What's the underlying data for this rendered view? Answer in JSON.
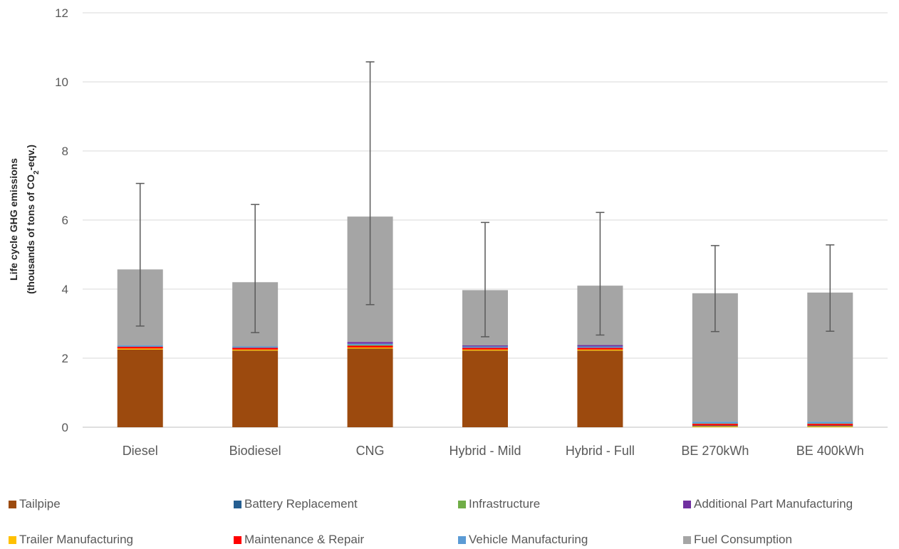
{
  "chart_data": {
    "type": "bar",
    "stacked": true,
    "categories": [
      "Diesel",
      "Biodiesel",
      "CNG",
      "Hybrid - Mild",
      "Hybrid - Full",
      "BE 270kWh",
      "BE 400kWh"
    ],
    "ylabel_line1": "Life cycle GHG emissions",
    "ylabel_line2_pre": "(thousands of tons of CO",
    "ylabel_line2_sub": "2",
    "ylabel_line2_post": "-eqv.)",
    "ylim": [
      0,
      12
    ],
    "yticks": [
      0,
      2,
      4,
      6,
      8,
      10,
      12
    ],
    "grid": true,
    "legend_position": "bottom",
    "series": [
      {
        "name": "Tailpipe",
        "color": "#9C4A0E",
        "values": [
          2.25,
          2.22,
          2.28,
          2.22,
          2.22,
          0.0,
          0.0
        ]
      },
      {
        "name": "Trailer Manufacturing",
        "color": "#FFC000",
        "values": [
          0.03,
          0.03,
          0.03,
          0.03,
          0.03,
          0.03,
          0.03
        ]
      },
      {
        "name": "Battery Replacement",
        "color": "#255E91",
        "values": [
          0.0,
          0.0,
          0.0,
          0.0,
          0.0,
          0.02,
          0.02
        ]
      },
      {
        "name": "Maintenance & Repair",
        "color": "#FF0000",
        "values": [
          0.05,
          0.05,
          0.05,
          0.05,
          0.05,
          0.05,
          0.05
        ]
      },
      {
        "name": "Infrastructure",
        "color": "#70AD47",
        "values": [
          0.0,
          0.0,
          0.02,
          0.0,
          0.0,
          0.01,
          0.01
        ]
      },
      {
        "name": "Vehicle Manufacturing",
        "color": "#5B9BD5",
        "values": [
          0.04,
          0.04,
          0.04,
          0.04,
          0.04,
          0.05,
          0.05
        ]
      },
      {
        "name": "Additional Part  Manufacturing",
        "color": "#7030A0",
        "values": [
          0.0,
          0.0,
          0.05,
          0.03,
          0.04,
          0.0,
          0.0
        ]
      },
      {
        "name": "Fuel Consumption",
        "color": "#A5A5A5",
        "values": [
          2.2,
          1.86,
          3.63,
          1.6,
          1.72,
          3.72,
          3.74
        ]
      }
    ],
    "error_bars": {
      "low": [
        2.93,
        2.74,
        3.55,
        2.62,
        2.67,
        2.77,
        2.78
      ],
      "high": [
        7.06,
        6.45,
        10.58,
        5.93,
        6.22,
        5.26,
        5.28
      ]
    }
  },
  "legend": {
    "rows": [
      [
        "Tailpipe",
        "Battery Replacement",
        "Infrastructure",
        "Additional Part  Manufacturing"
      ],
      [
        "Trailer Manufacturing",
        "Maintenance & Repair",
        "Vehicle Manufacturing",
        "Fuel Consumption"
      ]
    ]
  }
}
